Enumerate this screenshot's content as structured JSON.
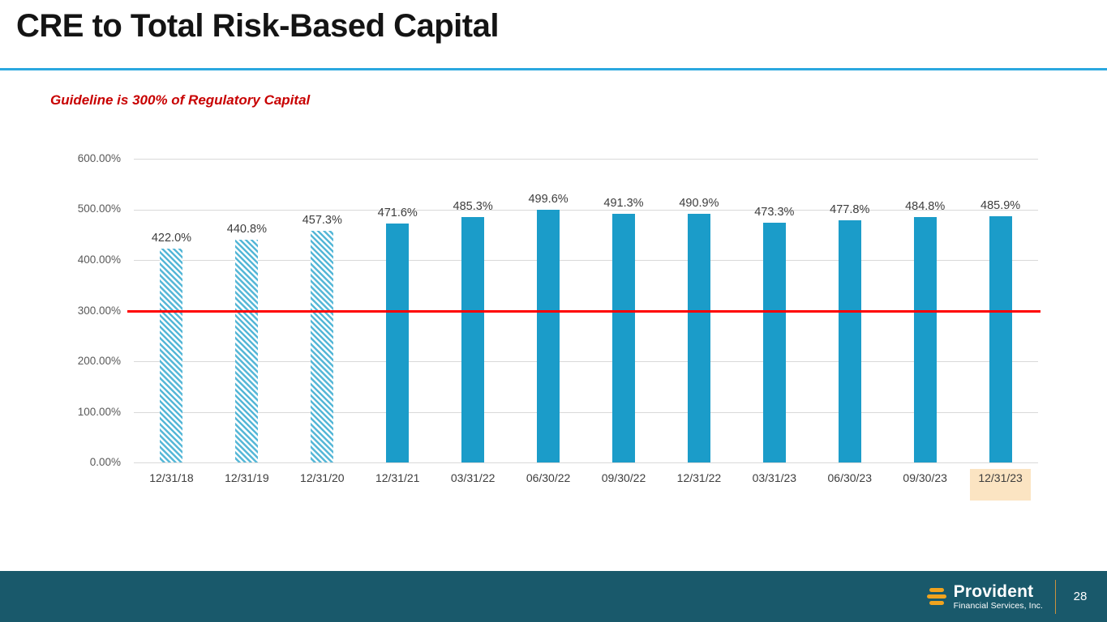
{
  "header": {
    "title": "CRE to Total Risk-Based Capital",
    "guideline_note": "Guideline is 300% of Regulatory Capital"
  },
  "chart_data": {
    "type": "bar",
    "title": "CRE to Total Risk-Based Capital",
    "categories": [
      "12/31/18",
      "12/31/19",
      "12/31/20",
      "12/31/21",
      "03/31/22",
      "06/30/22",
      "09/30/22",
      "12/31/22",
      "03/31/23",
      "06/30/23",
      "09/30/23",
      "12/31/23"
    ],
    "values": [
      422.0,
      440.8,
      457.3,
      471.6,
      485.3,
      499.6,
      491.3,
      490.9,
      473.3,
      477.8,
      484.8,
      485.9
    ],
    "value_labels": [
      "422.0%",
      "440.8%",
      "457.3%",
      "471.6%",
      "485.3%",
      "499.6%",
      "491.3%",
      "490.9%",
      "473.3%",
      "477.8%",
      "484.8%",
      "485.9%"
    ],
    "y_ticks": [
      "600.00%",
      "500.00%",
      "400.00%",
      "300.00%",
      "200.00%",
      "100.00%",
      "0.00%"
    ],
    "ylim": [
      0,
      600
    ],
    "grid": true,
    "legend": "none",
    "guideline": {
      "value": 300,
      "color": "#FF0000",
      "label": "Guideline is 300% of Regulatory Capital"
    },
    "bar_color": "#1B9CC9",
    "hatched_bar_indices": [
      0,
      1,
      2
    ],
    "highlighted_category_index": 11,
    "highlight_color": "#FBE4C2"
  },
  "footer": {
    "logo_name": "Provident",
    "logo_subtext": "Financial Services, Inc.",
    "page_number": "28"
  }
}
